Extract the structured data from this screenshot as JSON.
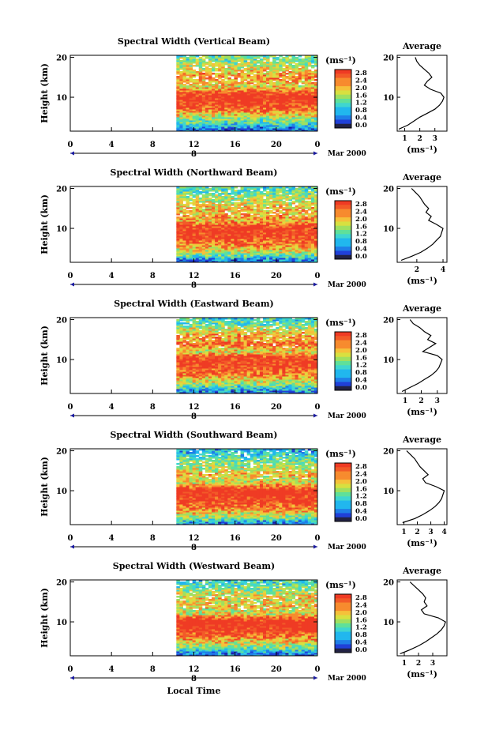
{
  "figure": {
    "xlabel": "Local Time",
    "ylabel": "Height (km)",
    "colorbar_unit": "(ms⁻¹)",
    "colorbar_ticks": [
      "0.0",
      "0.4",
      "0.8",
      "1.2",
      "1.6",
      "2.0",
      "2.4",
      "2.8"
    ],
    "avg_title": "Average",
    "avg_xlabel": "(ms⁻¹)",
    "date_label": "Mar 2000",
    "day_label": "8",
    "x_ticks": [
      "0",
      "4",
      "8",
      "12",
      "16",
      "20",
      "0"
    ],
    "y_ticks": [
      "10",
      "20"
    ]
  },
  "chart_data": [
    {
      "type": "heatmap",
      "title": "Spectral Width (Vertical Beam)",
      "x_range_hours": [
        0,
        24
      ],
      "y_range_km": [
        1.5,
        20.5
      ],
      "data_start_hour": 10.3,
      "color_range": [
        0.0,
        2.8
      ],
      "profile_heights_km": [
        2,
        3,
        4,
        5,
        6,
        7,
        8,
        9,
        10,
        11,
        12,
        13,
        14,
        15,
        16,
        17,
        18,
        19,
        20
      ],
      "average_profile": [
        0.6,
        1.2,
        1.6,
        2.0,
        2.5,
        3.0,
        3.3,
        3.5,
        3.6,
        3.4,
        2.7,
        2.3,
        2.5,
        2.8,
        2.6,
        2.3,
        2.0,
        1.8,
        1.7
      ],
      "avg_xlim": [
        0.5,
        3.8
      ],
      "avg_xticks": [
        "1",
        "2",
        "3"
      ]
    },
    {
      "type": "heatmap",
      "title": "Spectral Width (Northward Beam)",
      "x_range_hours": [
        0,
        24
      ],
      "y_range_km": [
        1.5,
        20.5
      ],
      "data_start_hour": 10.3,
      "color_range": [
        0.0,
        2.8
      ],
      "profile_heights_km": [
        2,
        3,
        4,
        5,
        6,
        7,
        8,
        9,
        10,
        11,
        12,
        13,
        14,
        15,
        16,
        17,
        18,
        19,
        20
      ],
      "average_profile": [
        0.8,
        1.6,
        2.3,
        2.8,
        3.2,
        3.5,
        3.8,
        3.9,
        4.0,
        3.5,
        2.9,
        3.1,
        2.7,
        2.9,
        2.6,
        2.4,
        2.2,
        1.9,
        1.6
      ],
      "avg_xlim": [
        0.5,
        4.3
      ],
      "avg_xticks": [
        "2",
        "4"
      ]
    },
    {
      "type": "heatmap",
      "title": "Spectral Width (Eastward Beam)",
      "x_range_hours": [
        0,
        24
      ],
      "y_range_km": [
        1.5,
        20.5
      ],
      "data_start_hour": 10.3,
      "color_range": [
        0.0,
        2.8
      ],
      "profile_heights_km": [
        2,
        3,
        4,
        5,
        6,
        7,
        8,
        9,
        10,
        11,
        12,
        13,
        14,
        15,
        16,
        17,
        18,
        19,
        20
      ],
      "average_profile": [
        0.8,
        1.3,
        1.8,
        2.2,
        2.6,
        2.9,
        3.1,
        3.2,
        3.3,
        3.0,
        2.1,
        2.5,
        2.9,
        2.4,
        2.6,
        2.2,
        1.9,
        1.5,
        1.3
      ],
      "avg_xlim": [
        0.5,
        3.6
      ],
      "avg_xticks": [
        "1",
        "2",
        "3"
      ]
    },
    {
      "type": "heatmap",
      "title": "Spectral Width (Southward Beam)",
      "x_range_hours": [
        0,
        24
      ],
      "y_range_km": [
        1.5,
        20.5
      ],
      "data_start_hour": 10.3,
      "color_range": [
        0.0,
        2.8
      ],
      "profile_heights_km": [
        2,
        3,
        4,
        5,
        6,
        7,
        8,
        9,
        10,
        11,
        12,
        13,
        14,
        15,
        16,
        17,
        18,
        19,
        20
      ],
      "average_profile": [
        0.9,
        1.8,
        2.4,
        2.9,
        3.3,
        3.6,
        3.8,
        3.9,
        4.0,
        3.4,
        2.6,
        2.4,
        2.8,
        2.5,
        2.2,
        2.0,
        1.8,
        1.5,
        1.2
      ],
      "avg_xlim": [
        0.5,
        4.2
      ],
      "avg_xticks": [
        "1",
        "2",
        "3",
        "4"
      ]
    },
    {
      "type": "heatmap",
      "title": "Spectral Width (Westward Beam)",
      "x_range_hours": [
        0,
        24
      ],
      "y_range_km": [
        1.5,
        20.5
      ],
      "data_start_hour": 10.3,
      "color_range": [
        0.0,
        2.8
      ],
      "profile_heights_km": [
        2,
        3,
        4,
        5,
        6,
        7,
        8,
        9,
        10,
        11,
        12,
        13,
        14,
        15,
        16,
        17,
        18,
        19,
        20
      ],
      "average_profile": [
        0.7,
        1.4,
        2.0,
        2.5,
        2.9,
        3.3,
        3.6,
        3.8,
        3.9,
        3.4,
        2.4,
        2.2,
        2.6,
        2.4,
        2.5,
        2.3,
        2.0,
        1.7,
        1.4
      ],
      "avg_xlim": [
        0.5,
        4.0
      ],
      "avg_xticks": [
        "1",
        "2",
        "3"
      ]
    }
  ]
}
